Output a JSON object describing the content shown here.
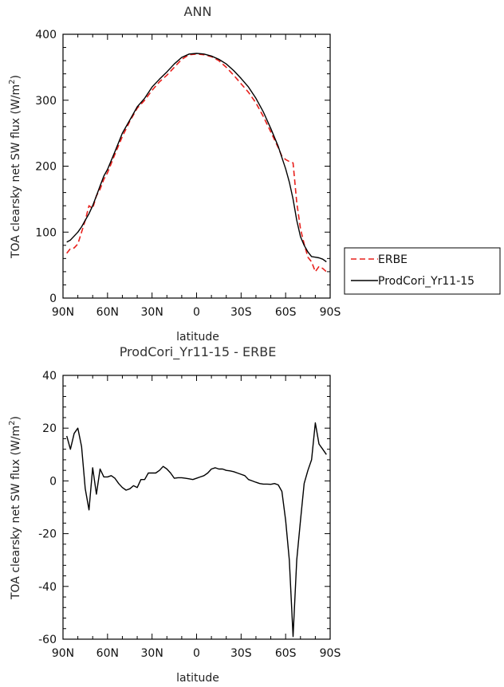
{
  "chart_data": [
    {
      "type": "line",
      "title": "ANN",
      "xlabel": "latitude",
      "ylabel": "TOA clearsky net SW flux (W/m²)",
      "ylabel_main": "TOA clearsky net SW flux (W/m",
      "ylabel_sup": "2",
      "ylabel_end": ")",
      "xlim": [
        -90,
        90
      ],
      "ylim": [
        0,
        400
      ],
      "xticks": [
        {
          "value": -90,
          "label": "90N"
        },
        {
          "value": -60,
          "label": "60N"
        },
        {
          "value": -30,
          "label": "30N"
        },
        {
          "value": 0,
          "label": "0"
        },
        {
          "value": 30,
          "label": "30S"
        },
        {
          "value": 60,
          "label": "60S"
        },
        {
          "value": 90,
          "label": "90S"
        }
      ],
      "yticks": [
        0,
        100,
        200,
        300,
        400
      ],
      "legend": {
        "placement": "right",
        "entries": [
          {
            "label": "ERBE",
            "color": "#e8201c",
            "dash": "dashed"
          },
          {
            "label": "ProdCori_Yr11-15",
            "color": "#000000",
            "dash": "solid"
          }
        ]
      },
      "series": [
        {
          "name": "ERBE",
          "color": "#e8201c",
          "dash": "dashed",
          "x": [
            -87.5,
            -85,
            -82.5,
            -80,
            -77.5,
            -75,
            -72.5,
            -70,
            -67.5,
            -65,
            -62.5,
            -60,
            -55,
            -50,
            -45,
            -40,
            -35,
            -30,
            -25,
            -20,
            -15,
            -10,
            -5,
            0,
            5,
            10,
            15,
            20,
            25,
            30,
            35,
            40,
            45,
            50,
            55,
            57.5,
            60,
            62.5,
            65,
            67.5,
            70,
            72.5,
            75,
            77.5,
            80,
            82.5,
            85,
            87.5
          ],
          "y": [
            68,
            75,
            76,
            82,
            100,
            118,
            140,
            136,
            155,
            165,
            180,
            190,
            218,
            245,
            268,
            288,
            300,
            315,
            328,
            338,
            350,
            362,
            369,
            370,
            369,
            366,
            360,
            350,
            338,
            325,
            312,
            296,
            275,
            252,
            228,
            215,
            210,
            207,
            205,
            145,
            105,
            82,
            62,
            55,
            40,
            48,
            45,
            40
          ]
        },
        {
          "name": "ProdCori_Yr11-15",
          "color": "#000000",
          "dash": "solid",
          "x": [
            -87.5,
            -85,
            -82.5,
            -80,
            -77.5,
            -75,
            -72.5,
            -70,
            -67.5,
            -65,
            -62.5,
            -60,
            -55,
            -50,
            -45,
            -40,
            -35,
            -30,
            -25,
            -20,
            -15,
            -10,
            -5,
            0,
            5,
            10,
            15,
            20,
            25,
            30,
            35,
            40,
            45,
            50,
            55,
            57.5,
            60,
            62.5,
            65,
            67.5,
            70,
            72.5,
            75,
            77.5,
            80,
            82.5,
            85,
            87.5
          ],
          "y": [
            85,
            88,
            94,
            100,
            108,
            118,
            128,
            140,
            155,
            170,
            185,
            195,
            222,
            250,
            270,
            290,
            303,
            320,
            332,
            343,
            355,
            365,
            370,
            371,
            370,
            367,
            362,
            355,
            345,
            333,
            320,
            303,
            282,
            257,
            230,
            213,
            196,
            176,
            150,
            118,
            93,
            80,
            70,
            63,
            62,
            61,
            59,
            55
          ]
        }
      ]
    },
    {
      "type": "line",
      "title": "ProdCori_Yr11-15 - ERBE",
      "xlabel": "latitude",
      "ylabel": "TOA clearsky net SW flux (W/m²)",
      "ylabel_main": "TOA clearsky net SW flux (W/m",
      "ylabel_sup": "2",
      "ylabel_end": ")",
      "xlim": [
        -90,
        90
      ],
      "ylim": [
        -60,
        40
      ],
      "xticks": [
        {
          "value": -90,
          "label": "90N"
        },
        {
          "value": -60,
          "label": "60N"
        },
        {
          "value": -30,
          "label": "30N"
        },
        {
          "value": 0,
          "label": "0"
        },
        {
          "value": 30,
          "label": "30S"
        },
        {
          "value": 60,
          "label": "60S"
        },
        {
          "value": 90,
          "label": "90S"
        }
      ],
      "yticks": [
        -60,
        -40,
        -20,
        0,
        20,
        40
      ],
      "series": [
        {
          "name": "ProdCori_Yr11-15 - ERBE",
          "color": "#000000",
          "dash": "solid",
          "x": [
            -87.5,
            -85,
            -82.5,
            -80,
            -77.5,
            -75,
            -72.5,
            -70,
            -67.5,
            -65,
            -62.5,
            -60,
            -57.5,
            -55,
            -52.5,
            -50,
            -47.5,
            -45,
            -42.5,
            -40,
            -37.5,
            -35,
            -32.5,
            -30,
            -27.5,
            -25,
            -22.5,
            -20,
            -17.5,
            -15,
            -12.5,
            -10,
            -7.5,
            -5,
            -2.5,
            0,
            2.5,
            5,
            7.5,
            10,
            12.5,
            15,
            17.5,
            20,
            22.5,
            25,
            27.5,
            30,
            32.5,
            35,
            37.5,
            40,
            42.5,
            45,
            47.5,
            50,
            52.5,
            55,
            57.5,
            60,
            62.5,
            65,
            67.5,
            70,
            72.5,
            75,
            77.5,
            80,
            82.5,
            85,
            87.5
          ],
          "y": [
            17,
            12,
            18,
            20,
            13,
            -3,
            -11,
            5,
            -5,
            4.5,
            1.5,
            1.5,
            2,
            1,
            -1,
            -2.5,
            -3.5,
            -3,
            -1.8,
            -2.5,
            0.5,
            0.5,
            3,
            3,
            3,
            4,
            5.5,
            4.5,
            3,
            1,
            1.2,
            1.2,
            1,
            0.8,
            0.5,
            1,
            1.5,
            2,
            3,
            4.5,
            5,
            4.5,
            4.5,
            4,
            3.8,
            3.5,
            3,
            2.5,
            2,
            0.5,
            0,
            -0.5,
            -1,
            -1.2,
            -1.2,
            -1.3,
            -1,
            -1.5,
            -4,
            -15,
            -30,
            -59,
            -30,
            -15,
            -1,
            4,
            8,
            22,
            14,
            12,
            10
          ]
        }
      ]
    }
  ]
}
